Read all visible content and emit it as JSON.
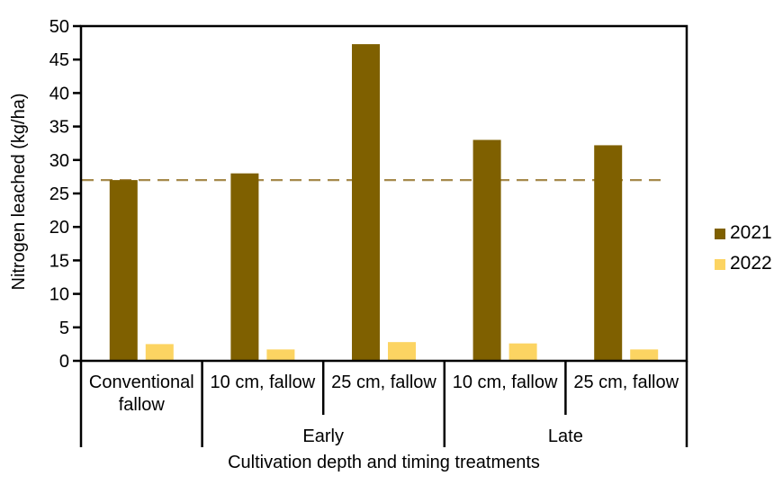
{
  "figure": {
    "background": "#FFFFFF",
    "text_color": "#000000",
    "axis_color": "#000000"
  },
  "chart_data": {
    "type": "bar",
    "title": "",
    "ylabel": "Nitrogen leached (kg/ha)",
    "xlabel": "Cultivation depth and timing treatments",
    "ylim": [
      0,
      50
    ],
    "ytick_step": 5,
    "ytick_labels": [
      "0",
      "5",
      "10",
      "15",
      "20",
      "25",
      "30",
      "35",
      "40",
      "45",
      "50"
    ],
    "categories": [
      "Conventional fallow",
      "10 cm, fallow",
      "25 cm, fallow",
      "10 cm, fallow",
      "25 cm, fallow"
    ],
    "category_label_lines": [
      [
        "Conventional",
        "fallow"
      ],
      [
        "10 cm, fallow"
      ],
      [
        "25 cm, fallow"
      ],
      [
        "10 cm, fallow"
      ],
      [
        "25 cm, fallow"
      ]
    ],
    "timing_groups": [
      {
        "label": "Early",
        "first_category_index": 1,
        "last_category_index": 2
      },
      {
        "label": "Late",
        "first_category_index": 3,
        "last_category_index": 4
      }
    ],
    "series": [
      {
        "name": "2021",
        "color": "#7F6000",
        "values": [
          27,
          28,
          47.3,
          33,
          32.2
        ]
      },
      {
        "name": "2022",
        "color": "#FCD462",
        "values": [
          2.5,
          1.7,
          2.8,
          2.6,
          1.7
        ]
      }
    ],
    "reference_line": {
      "value": 27,
      "color": "#A6894C",
      "style": "dashed"
    },
    "legend": {
      "position": "right",
      "entries": [
        "2021",
        "2022"
      ]
    },
    "grid": false
  }
}
